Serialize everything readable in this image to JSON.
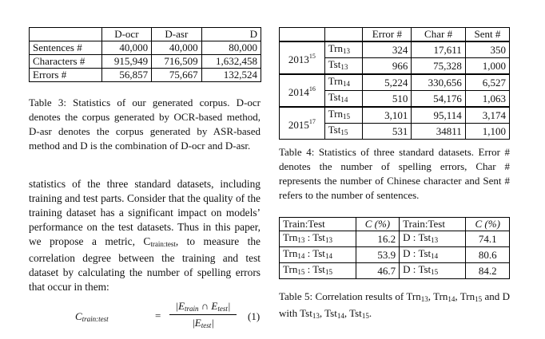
{
  "table3": {
    "header": [
      "",
      "D-ocr",
      "D-asr",
      "D"
    ],
    "rows": [
      [
        "Sentences #",
        "40,000",
        "40,000",
        "80,000"
      ],
      [
        "Characters #",
        "915,949",
        "716,509",
        "1,632,458"
      ],
      [
        "Errors #",
        "56,857",
        "75,667",
        "132,524"
      ]
    ]
  },
  "caption3": "Table 3: Statistics of our generated corpus. D-ocr denotes the corpus generated by OCR-based method, D-asr denotes the corpus generated by ASR-based method and D is the combination of D-ocr and D-asr.",
  "table4": {
    "header": [
      "Error #",
      "Char #",
      "Sent #"
    ],
    "groups": [
      {
        "year": "2013",
        "sup": "15",
        "rows": [
          {
            "split": "Trn",
            "sub": "13",
            "vals": [
              "324",
              "17,611",
              "350"
            ]
          },
          {
            "split": "Tst",
            "sub": "13",
            "vals": [
              "966",
              "75,328",
              "1,000"
            ]
          }
        ]
      },
      {
        "year": "2014",
        "sup": "16",
        "rows": [
          {
            "split": "Trn",
            "sub": "14",
            "vals": [
              "5,224",
              "330,656",
              "6,527"
            ]
          },
          {
            "split": "Tst",
            "sub": "14",
            "vals": [
              "510",
              "54,176",
              "1,063"
            ]
          }
        ]
      },
      {
        "year": "2015",
        "sup": "17",
        "rows": [
          {
            "split": "Trn",
            "sub": "15",
            "vals": [
              "3,101",
              "95,114",
              "3,174"
            ]
          },
          {
            "split": "Tst",
            "sub": "15",
            "vals": [
              "531",
              "34811",
              "1,100"
            ]
          }
        ]
      }
    ]
  },
  "caption4": "Table 4: Statistics of three standard datasets. Error # denotes the number of spelling errors, Char # represents the number of Chinese character and Sent # refers to the number of sentences.",
  "table5": {
    "header": [
      "Train:Test",
      "C (%)",
      "Train:Test",
      "C (%)"
    ],
    "rows": [
      {
        "a": "Trn",
        "as": "13",
        "b": "Tst",
        "bs": "13",
        "c1": "16.2",
        "d": "D",
        "e": "Tst",
        "es": "13",
        "c2": "74.1"
      },
      {
        "a": "Trn",
        "as": "14",
        "b": "Tst",
        "bs": "14",
        "c1": "53.9",
        "d": "D",
        "e": "Tst",
        "es": "14",
        "c2": "80.6"
      },
      {
        "a": "Trn",
        "as": "15",
        "b": "Tst",
        "bs": "15",
        "c1": "46.7",
        "d": "D",
        "e": "Tst",
        "es": "15",
        "c2": "84.2"
      }
    ]
  },
  "caption5": {
    "p1": "Table 5: Correlation results of Trn",
    "s1": "13",
    "p2": ", Trn",
    "s2": "14",
    "p3": ", Trn",
    "s3": "15",
    "p4": " and D with Tst",
    "s4": "13",
    "p5": ", Tst",
    "s5": "14",
    "p6": ", Tst",
    "s6": "15",
    "p7": "."
  },
  "body": {
    "before": "statistics of the three standard datasets, including training and test parts. Consider that the quality of the training dataset has a significant impact on models’ performance on the test datasets. Thus in this paper, we propose a metric, C",
    "metric_sub": "train:test",
    "after": ", to measure the correlation degree between the training and test dataset by calculating the number of spelling errors that occur in them:"
  },
  "equation": {
    "lhs": "C",
    "lhs_sub": "train:test",
    "eq": "=",
    "num_open": "|E",
    "num_sub1": "train",
    "num_cap": " ∩ E",
    "num_sub2": "test",
    "num_close": "|",
    "den_open": "|E",
    "den_sub": "test",
    "den_close": "|",
    "number": "(1)"
  }
}
